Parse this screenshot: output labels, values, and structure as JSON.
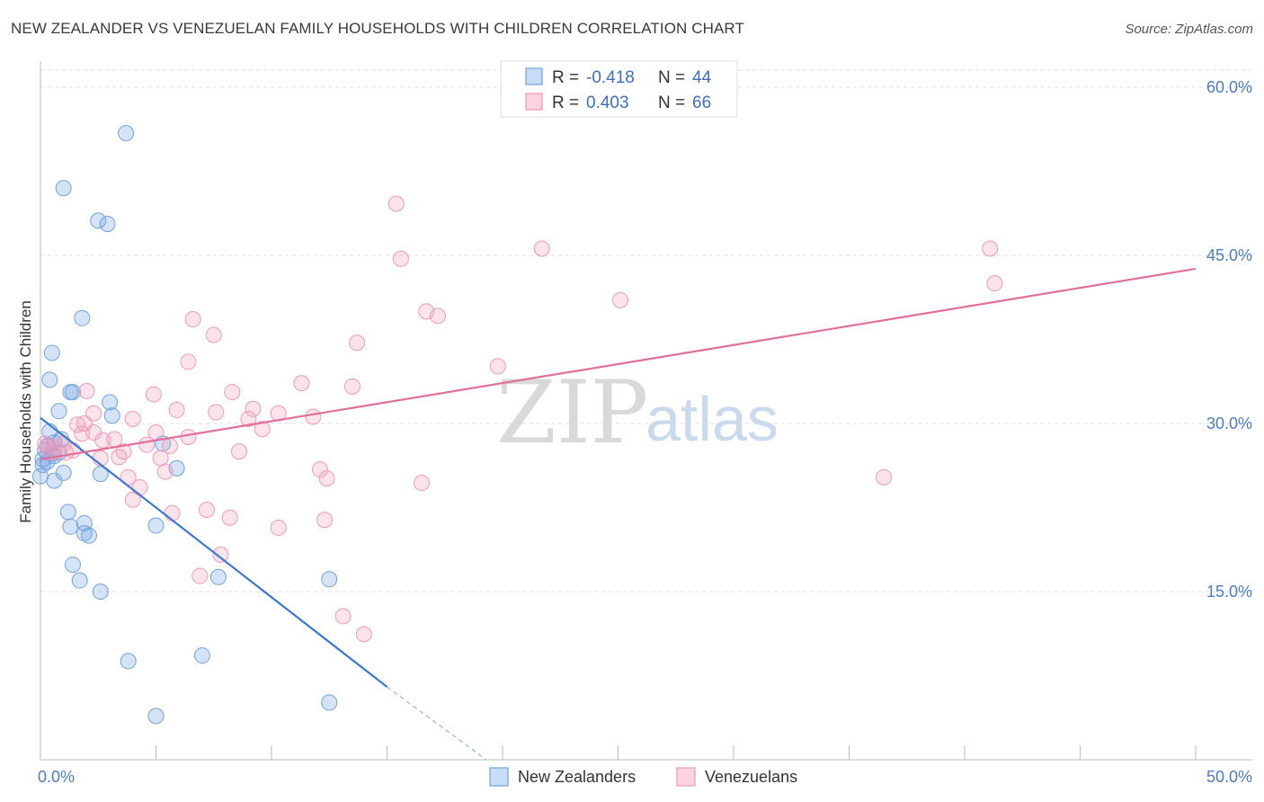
{
  "title": "NEW ZEALANDER VS VENEZUELAN FAMILY HOUSEHOLDS WITH CHILDREN CORRELATION CHART",
  "source": "Source: ZipAtlas.com",
  "watermark": {
    "zip": "ZIP",
    "atlas": "atlas"
  },
  "legend_top": {
    "rows": [
      {
        "r_label": "R =",
        "r_value": "-0.418",
        "n_label": "N =",
        "n_value": "44",
        "color": "#6fa3e0"
      },
      {
        "r_label": "R =",
        "r_value": "0.403",
        "n_label": "N =",
        "n_value": "66",
        "color": "#f09ab6"
      }
    ]
  },
  "legend_bottom": [
    {
      "label": "New Zealanders",
      "color": "#6fa3e0"
    },
    {
      "label": "Venezuelans",
      "color": "#f09ab6"
    }
  ],
  "chart_data": {
    "type": "scatter",
    "xlabel": "",
    "ylabel": "Family Households with Children",
    "xlim": [
      0,
      50
    ],
    "ylim": [
      0,
      60
    ],
    "x_tick_labels": {
      "min": "0.0%",
      "max": "50.0%"
    },
    "y_ticks": [
      15,
      30,
      45,
      60
    ],
    "y_tick_labels": [
      "15.0%",
      "30.0%",
      "45.0%",
      "60.0%"
    ],
    "grid": true,
    "series": [
      {
        "name": "New Zealanders",
        "color": "#6fa3e0",
        "trend": {
          "x0": 0.0,
          "y0": 30.5,
          "x1": 15.0,
          "y1": 6.5,
          "dashed_to_x": 19.3,
          "dashed_to_y": 0.0
        },
        "points": [
          [
            3.7,
            55.9
          ],
          [
            1.0,
            51.0
          ],
          [
            2.5,
            48.1
          ],
          [
            2.9,
            47.8
          ],
          [
            1.8,
            39.4
          ],
          [
            0.5,
            36.3
          ],
          [
            0.4,
            33.9
          ],
          [
            1.4,
            32.8
          ],
          [
            3.0,
            31.9
          ],
          [
            0.8,
            31.1
          ],
          [
            3.1,
            30.7
          ],
          [
            0.4,
            29.3
          ],
          [
            0.9,
            28.6
          ],
          [
            0.6,
            28.3
          ],
          [
            5.3,
            28.2
          ],
          [
            0.3,
            28.0
          ],
          [
            0.2,
            27.6
          ],
          [
            0.8,
            27.4
          ],
          [
            0.5,
            27.3
          ],
          [
            0.6,
            27.1
          ],
          [
            0.1,
            26.8
          ],
          [
            0.3,
            26.6
          ],
          [
            0.1,
            26.3
          ],
          [
            5.9,
            26.0
          ],
          [
            1.0,
            25.6
          ],
          [
            2.6,
            25.5
          ],
          [
            0.0,
            25.3
          ],
          [
            0.6,
            24.9
          ],
          [
            1.2,
            22.1
          ],
          [
            5.0,
            20.9
          ],
          [
            1.3,
            20.8
          ],
          [
            1.9,
            21.1
          ],
          [
            1.9,
            20.2
          ],
          [
            2.1,
            20.0
          ],
          [
            1.4,
            17.4
          ],
          [
            1.7,
            16.0
          ],
          [
            7.7,
            16.3
          ],
          [
            12.5,
            16.1
          ],
          [
            2.6,
            15.0
          ],
          [
            3.8,
            8.8
          ],
          [
            7.0,
            9.3
          ],
          [
            12.5,
            5.1
          ],
          [
            5.0,
            3.9
          ],
          [
            1.3,
            32.8
          ]
        ]
      },
      {
        "name": "Venezuelans",
        "color": "#f09ab6",
        "trend": {
          "x0": 0.0,
          "y0": 26.8,
          "x1": 50.0,
          "y1": 43.8
        },
        "points": [
          [
            15.4,
            49.6
          ],
          [
            21.7,
            45.6
          ],
          [
            41.1,
            45.6
          ],
          [
            15.6,
            44.7
          ],
          [
            41.3,
            42.5
          ],
          [
            25.1,
            41.0
          ],
          [
            16.7,
            40.0
          ],
          [
            17.2,
            39.6
          ],
          [
            6.6,
            39.3
          ],
          [
            7.5,
            37.9
          ],
          [
            13.7,
            37.2
          ],
          [
            6.4,
            35.5
          ],
          [
            19.8,
            35.1
          ],
          [
            11.3,
            33.6
          ],
          [
            13.5,
            33.3
          ],
          [
            2.0,
            32.9
          ],
          [
            8.3,
            32.8
          ],
          [
            4.9,
            32.6
          ],
          [
            9.2,
            31.3
          ],
          [
            5.9,
            31.2
          ],
          [
            7.6,
            31.0
          ],
          [
            10.3,
            30.9
          ],
          [
            2.3,
            30.9
          ],
          [
            11.8,
            30.6
          ],
          [
            4.0,
            30.4
          ],
          [
            9.0,
            30.4
          ],
          [
            1.9,
            30.0
          ],
          [
            1.6,
            29.9
          ],
          [
            9.6,
            29.5
          ],
          [
            2.3,
            29.2
          ],
          [
            5.0,
            29.2
          ],
          [
            1.8,
            29.1
          ],
          [
            6.4,
            28.8
          ],
          [
            3.2,
            28.6
          ],
          [
            2.7,
            28.5
          ],
          [
            0.2,
            28.2
          ],
          [
            4.6,
            28.1
          ],
          [
            5.6,
            28.0
          ],
          [
            0.6,
            27.9
          ],
          [
            1.4,
            27.6
          ],
          [
            3.6,
            27.5
          ],
          [
            8.6,
            27.5
          ],
          [
            1.1,
            27.4
          ],
          [
            0.5,
            27.4
          ],
          [
            5.2,
            26.9
          ],
          [
            2.6,
            26.9
          ],
          [
            3.4,
            27.0
          ],
          [
            12.1,
            25.9
          ],
          [
            5.4,
            25.7
          ],
          [
            12.4,
            25.1
          ],
          [
            3.8,
            25.2
          ],
          [
            16.5,
            24.7
          ],
          [
            36.5,
            25.2
          ],
          [
            4.3,
            24.3
          ],
          [
            4.0,
            23.2
          ],
          [
            5.7,
            22.0
          ],
          [
            7.2,
            22.3
          ],
          [
            8.2,
            21.6
          ],
          [
            12.3,
            21.4
          ],
          [
            10.3,
            20.7
          ],
          [
            7.8,
            18.3
          ],
          [
            6.9,
            16.4
          ],
          [
            13.1,
            12.8
          ],
          [
            14.0,
            11.2
          ],
          [
            0.3,
            27.9
          ],
          [
            1.0,
            28.2
          ]
        ]
      }
    ]
  }
}
